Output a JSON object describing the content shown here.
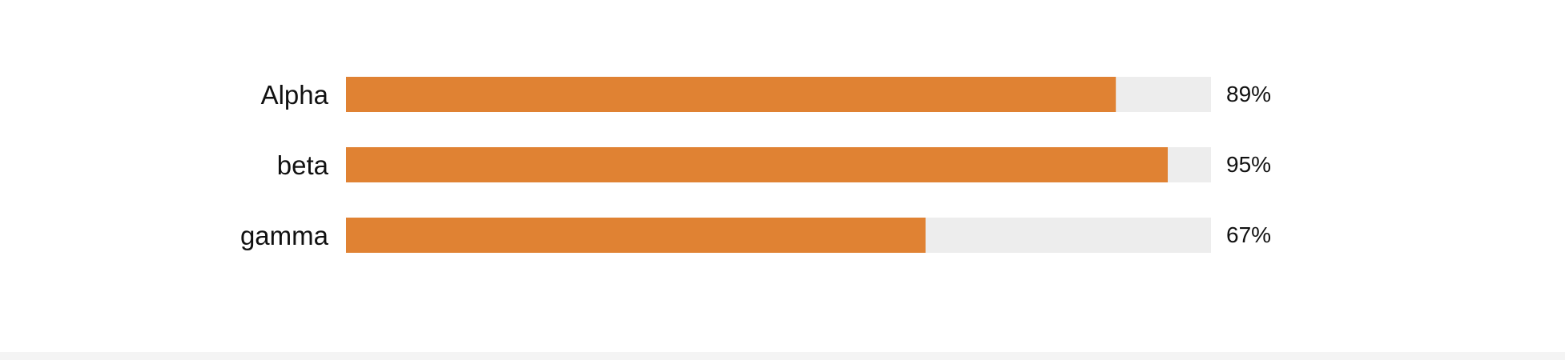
{
  "chart_data": {
    "type": "bar",
    "orientation": "horizontal",
    "categories": [
      "Alpha",
      "beta",
      "gamma"
    ],
    "values": [
      89,
      95,
      67
    ],
    "value_labels": [
      "89%",
      "95%",
      "67%"
    ],
    "xlim": [
      0,
      100
    ],
    "title": "",
    "xlabel": "",
    "ylabel": "",
    "grid": false,
    "colors": {
      "bar": "#E08233",
      "track": "#EDEDED"
    }
  }
}
